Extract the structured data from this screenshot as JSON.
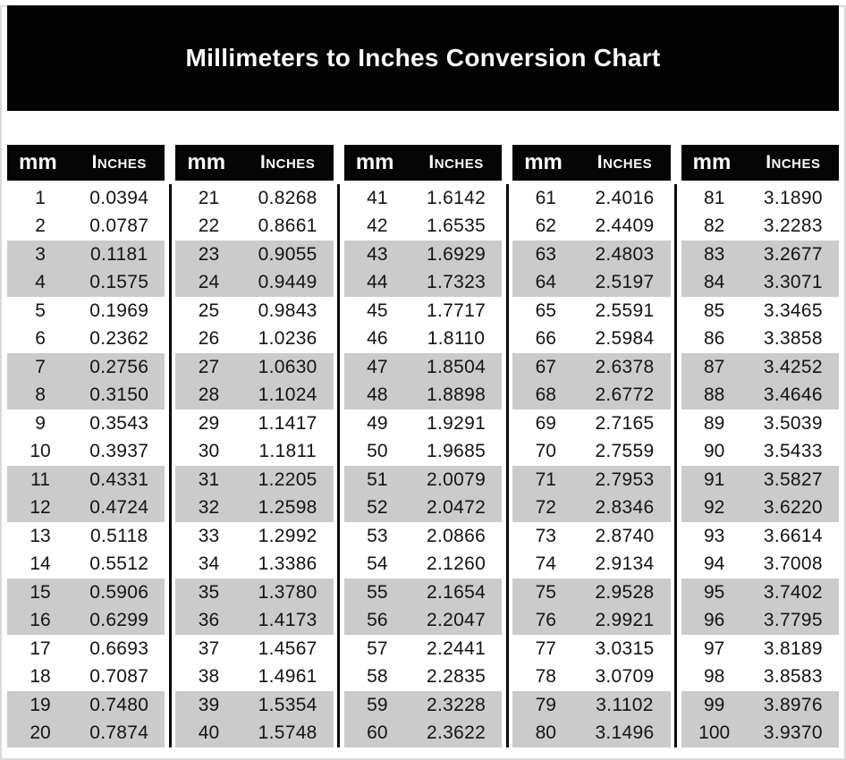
{
  "title": "Millimeters to Inches Conversion Chart",
  "table_header": {
    "mm": "mm",
    "inches": "Inches"
  },
  "colors": {
    "banner_bg": "#030303",
    "header_bg": "#050505",
    "header_text": "#fafafa",
    "stripe_gray": "#cbcbcb",
    "body_text": "#141414",
    "divider": "#0a0a0a"
  },
  "tables": [
    {
      "rows": [
        [
          "1",
          "0.0394"
        ],
        [
          "2",
          "0.0787"
        ],
        [
          "3",
          "0.1181"
        ],
        [
          "4",
          "0.1575"
        ],
        [
          "5",
          "0.1969"
        ],
        [
          "6",
          "0.2362"
        ],
        [
          "7",
          "0.2756"
        ],
        [
          "8",
          "0.3150"
        ],
        [
          "9",
          "0.3543"
        ],
        [
          "10",
          "0.3937"
        ],
        [
          "11",
          "0.4331"
        ],
        [
          "12",
          "0.4724"
        ],
        [
          "13",
          "0.5118"
        ],
        [
          "14",
          "0.5512"
        ],
        [
          "15",
          "0.5906"
        ],
        [
          "16",
          "0.6299"
        ],
        [
          "17",
          "0.6693"
        ],
        [
          "18",
          "0.7087"
        ],
        [
          "19",
          "0.7480"
        ],
        [
          "20",
          "0.7874"
        ]
      ]
    },
    {
      "rows": [
        [
          "21",
          "0.8268"
        ],
        [
          "22",
          "0.8661"
        ],
        [
          "23",
          "0.9055"
        ],
        [
          "24",
          "0.9449"
        ],
        [
          "25",
          "0.9843"
        ],
        [
          "26",
          "1.0236"
        ],
        [
          "27",
          "1.0630"
        ],
        [
          "28",
          "1.1024"
        ],
        [
          "29",
          "1.1417"
        ],
        [
          "30",
          "1.1811"
        ],
        [
          "31",
          "1.2205"
        ],
        [
          "32",
          "1.2598"
        ],
        [
          "33",
          "1.2992"
        ],
        [
          "34",
          "1.3386"
        ],
        [
          "35",
          "1.3780"
        ],
        [
          "36",
          "1.4173"
        ],
        [
          "37",
          "1.4567"
        ],
        [
          "38",
          "1.4961"
        ],
        [
          "39",
          "1.5354"
        ],
        [
          "40",
          "1.5748"
        ]
      ]
    },
    {
      "rows": [
        [
          "41",
          "1.6142"
        ],
        [
          "42",
          "1.6535"
        ],
        [
          "43",
          "1.6929"
        ],
        [
          "44",
          "1.7323"
        ],
        [
          "45",
          "1.7717"
        ],
        [
          "46",
          "1.8110"
        ],
        [
          "47",
          "1.8504"
        ],
        [
          "48",
          "1.8898"
        ],
        [
          "49",
          "1.9291"
        ],
        [
          "50",
          "1.9685"
        ],
        [
          "51",
          "2.0079"
        ],
        [
          "52",
          "2.0472"
        ],
        [
          "53",
          "2.0866"
        ],
        [
          "54",
          "2.1260"
        ],
        [
          "55",
          "2.1654"
        ],
        [
          "56",
          "2.2047"
        ],
        [
          "57",
          "2.2441"
        ],
        [
          "58",
          "2.2835"
        ],
        [
          "59",
          "2.3228"
        ],
        [
          "60",
          "2.3622"
        ]
      ]
    },
    {
      "rows": [
        [
          "61",
          "2.4016"
        ],
        [
          "62",
          "2.4409"
        ],
        [
          "63",
          "2.4803"
        ],
        [
          "64",
          "2.5197"
        ],
        [
          "65",
          "2.5591"
        ],
        [
          "66",
          "2.5984"
        ],
        [
          "67",
          "2.6378"
        ],
        [
          "68",
          "2.6772"
        ],
        [
          "69",
          "2.7165"
        ],
        [
          "70",
          "2.7559"
        ],
        [
          "71",
          "2.7953"
        ],
        [
          "72",
          "2.8346"
        ],
        [
          "73",
          "2.8740"
        ],
        [
          "74",
          "2.9134"
        ],
        [
          "75",
          "2.9528"
        ],
        [
          "76",
          "2.9921"
        ],
        [
          "77",
          "3.0315"
        ],
        [
          "78",
          "3.0709"
        ],
        [
          "79",
          "3.1102"
        ],
        [
          "80",
          "3.1496"
        ]
      ]
    },
    {
      "rows": [
        [
          "81",
          "3.1890"
        ],
        [
          "82",
          "3.2283"
        ],
        [
          "83",
          "3.2677"
        ],
        [
          "84",
          "3.3071"
        ],
        [
          "85",
          "3.3465"
        ],
        [
          "86",
          "3.3858"
        ],
        [
          "87",
          "3.4252"
        ],
        [
          "88",
          "3.4646"
        ],
        [
          "89",
          "3.5039"
        ],
        [
          "90",
          "3.5433"
        ],
        [
          "91",
          "3.5827"
        ],
        [
          "92",
          "3.6220"
        ],
        [
          "93",
          "3.6614"
        ],
        [
          "94",
          "3.7008"
        ],
        [
          "95",
          "3.7402"
        ],
        [
          "96",
          "3.7795"
        ],
        [
          "97",
          "3.8189"
        ],
        [
          "98",
          "3.8583"
        ],
        [
          "99",
          "3.8976"
        ],
        [
          "100",
          "3.9370"
        ]
      ]
    }
  ]
}
